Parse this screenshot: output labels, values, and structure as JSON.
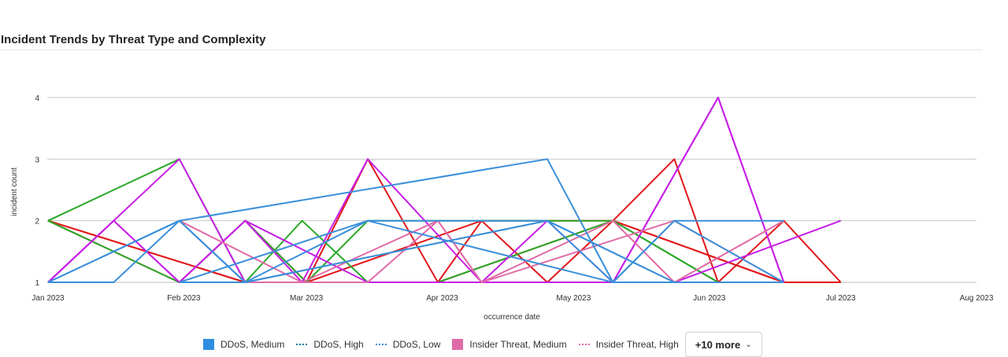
{
  "title": "Incident Trends by Threat Type and Complexity",
  "chart_data": {
    "type": "line",
    "title": "Incident Trends by Threat Type and Complexity",
    "xlabel": "occurrence date",
    "ylabel": "incident count",
    "ylim": [
      1,
      4
    ],
    "yticks": [
      1,
      2,
      3,
      4
    ],
    "xlim": [
      "2023-01-01",
      "2023-08-01"
    ],
    "xticks": [
      {
        "date": "2023-01-01",
        "label": "Jan 2023"
      },
      {
        "date": "2023-02-01",
        "label": "Feb 2023"
      },
      {
        "date": "2023-03-01",
        "label": "Mar 2023"
      },
      {
        "date": "2023-04-01",
        "label": "Apr 2023"
      },
      {
        "date": "2023-05-01",
        "label": "May 2023"
      },
      {
        "date": "2023-06-01",
        "label": "Jun 2023"
      },
      {
        "date": "2023-07-01",
        "label": "Jul 2023"
      },
      {
        "date": "2023-08-01",
        "label": "Aug 2023"
      }
    ],
    "grid": true,
    "legend_position": "bottom",
    "series": [
      {
        "color": "#e0181b",
        "points": [
          [
            "2023-01-01",
            2
          ],
          [
            "2023-01-31",
            1
          ],
          [
            "2023-02-15",
            2
          ],
          [
            "2023-03-01",
            1
          ],
          [
            "2023-03-15",
            3
          ],
          [
            "2023-03-31",
            1
          ],
          [
            "2023-04-10",
            2
          ],
          [
            "2023-04-25",
            2
          ],
          [
            "2023-05-10",
            2
          ],
          [
            "2023-05-24",
            3
          ],
          [
            "2023-06-03",
            1
          ],
          [
            "2023-06-18",
            2
          ],
          [
            "2023-07-01",
            1
          ]
        ]
      },
      {
        "color": "#e0181b",
        "points": [
          [
            "2023-01-01",
            2
          ],
          [
            "2023-02-15",
            1
          ],
          [
            "2023-03-01",
            1
          ],
          [
            "2023-04-10",
            2
          ],
          [
            "2023-04-25",
            1
          ],
          [
            "2023-05-10",
            2
          ],
          [
            "2023-06-18",
            1
          ],
          [
            "2023-07-01",
            1
          ]
        ]
      },
      {
        "color": "#e0181b",
        "points": [
          [
            "2023-01-01",
            2
          ],
          [
            "2023-02-15",
            1
          ],
          [
            "2023-03-31",
            1
          ],
          [
            "2023-05-10",
            2
          ],
          [
            "2023-06-18",
            1
          ],
          [
            "2023-07-01",
            1
          ]
        ]
      },
      {
        "color": "#2aa827",
        "points": [
          [
            "2023-01-01",
            2
          ],
          [
            "2023-01-31",
            1
          ],
          [
            "2023-02-15",
            2
          ],
          [
            "2023-03-01",
            1
          ],
          [
            "2023-03-15",
            2
          ],
          [
            "2023-03-31",
            2
          ],
          [
            "2023-05-10",
            2
          ],
          [
            "2023-06-03",
            1
          ]
        ]
      },
      {
        "color": "#2aa827",
        "points": [
          [
            "2023-01-01",
            2
          ],
          [
            "2023-01-31",
            3
          ],
          [
            "2023-02-15",
            1
          ],
          [
            "2023-02-28",
            2
          ],
          [
            "2023-03-15",
            1
          ],
          [
            "2023-03-31",
            1
          ],
          [
            "2023-05-10",
            2
          ],
          [
            "2023-06-03",
            1
          ]
        ]
      },
      {
        "color": "#c71de6",
        "points": [
          [
            "2023-01-01",
            1
          ],
          [
            "2023-01-16",
            2
          ],
          [
            "2023-01-31",
            1
          ],
          [
            "2023-02-15",
            2
          ],
          [
            "2023-03-15",
            1
          ],
          [
            "2023-03-31",
            1
          ],
          [
            "2023-05-10",
            1
          ],
          [
            "2023-06-03",
            4
          ],
          [
            "2023-06-18",
            1
          ]
        ]
      },
      {
        "color": "#c71de6",
        "points": [
          [
            "2023-01-01",
            1
          ],
          [
            "2023-01-16",
            2
          ],
          [
            "2023-01-31",
            1
          ],
          [
            "2023-02-15",
            2
          ],
          [
            "2023-02-28",
            1
          ],
          [
            "2023-03-15",
            3
          ],
          [
            "2023-04-10",
            1
          ],
          [
            "2023-04-25",
            2
          ],
          [
            "2023-05-10",
            1
          ],
          [
            "2023-05-24",
            1
          ],
          [
            "2023-07-01",
            2
          ]
        ]
      },
      {
        "color": "#c71de6",
        "points": [
          [
            "2023-01-01",
            1
          ],
          [
            "2023-01-31",
            3
          ],
          [
            "2023-02-15",
            1
          ],
          [
            "2023-03-31",
            1
          ],
          [
            "2023-05-10",
            1
          ],
          [
            "2023-06-03",
            4
          ],
          [
            "2023-06-18",
            1
          ]
        ]
      },
      {
        "color": "#e06aa6",
        "points": [
          [
            "2023-01-31",
            2
          ],
          [
            "2023-02-15",
            1
          ],
          [
            "2023-03-15",
            1
          ],
          [
            "2023-03-31",
            2
          ],
          [
            "2023-04-10",
            1
          ],
          [
            "2023-05-10",
            2
          ],
          [
            "2023-05-24",
            1
          ],
          [
            "2023-06-18",
            2
          ]
        ]
      },
      {
        "color": "#e06aa6",
        "points": [
          [
            "2023-01-31",
            2
          ],
          [
            "2023-02-28",
            1
          ],
          [
            "2023-03-31",
            2
          ],
          [
            "2023-04-10",
            1
          ],
          [
            "2023-05-24",
            2
          ],
          [
            "2023-06-18",
            1
          ]
        ]
      },
      {
        "color": "#3a8fd9",
        "points": [
          [
            "2023-01-01",
            1
          ],
          [
            "2023-01-31",
            2
          ],
          [
            "2023-04-25",
            3
          ],
          [
            "2023-05-10",
            1
          ],
          [
            "2023-05-24",
            2
          ],
          [
            "2023-06-18",
            2
          ]
        ]
      },
      {
        "color": "#3a8fd9",
        "points": [
          [
            "2023-01-01",
            1
          ],
          [
            "2023-01-31",
            2
          ],
          [
            "2023-02-15",
            1
          ],
          [
            "2023-03-15",
            2
          ],
          [
            "2023-05-10",
            1
          ],
          [
            "2023-06-18",
            1
          ]
        ]
      },
      {
        "color": "#3a8fd9",
        "points": [
          [
            "2023-01-01",
            1
          ],
          [
            "2023-01-16",
            1
          ],
          [
            "2023-01-31",
            2
          ],
          [
            "2023-02-15",
            1
          ],
          [
            "2023-04-25",
            2
          ],
          [
            "2023-05-10",
            1
          ],
          [
            "2023-05-24",
            2
          ],
          [
            "2023-06-18",
            1
          ]
        ]
      },
      {
        "color": "#3a8fd9",
        "points": [
          [
            "2023-01-31",
            1
          ],
          [
            "2023-03-15",
            2
          ],
          [
            "2023-04-25",
            2
          ],
          [
            "2023-05-24",
            1
          ],
          [
            "2023-06-18",
            1
          ]
        ]
      },
      {
        "color": "#3a8fd9",
        "points": [
          [
            "2023-01-31",
            1
          ],
          [
            "2023-02-15",
            1
          ],
          [
            "2023-04-25",
            2
          ],
          [
            "2023-05-24",
            1
          ],
          [
            "2023-06-18",
            1
          ]
        ]
      }
    ]
  },
  "legend": {
    "items": [
      {
        "label": "DDoS, Medium",
        "style": "box",
        "color": "#2e8ee0"
      },
      {
        "label": "DDoS, High",
        "style": "dotted",
        "color": "#1a7a9c"
      },
      {
        "label": "DDoS, Low",
        "style": "dotted",
        "color": "#2e8ee0"
      },
      {
        "label": "Insider Threat, Medium",
        "style": "box",
        "color": "#e06aa6"
      },
      {
        "label": "Insider Threat, High",
        "style": "dotted",
        "color": "#e06aa6"
      }
    ],
    "more_label": "+10 more"
  }
}
